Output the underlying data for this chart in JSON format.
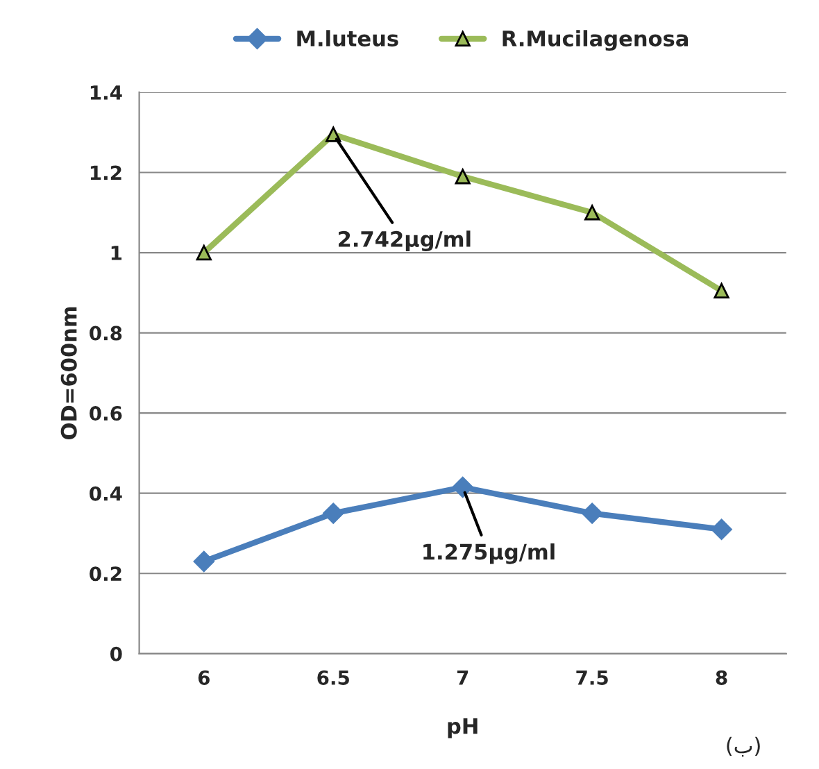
{
  "chart_data": {
    "type": "line",
    "xlabel": "pH",
    "ylabel": "OD=600nm",
    "categories": [
      "6",
      "6.5",
      "7",
      "7.5",
      "8"
    ],
    "series": [
      {
        "name": "M.luteus",
        "color": "#4a7ebb",
        "marker": "diamond",
        "values": [
          0.23,
          0.35,
          0.415,
          0.35,
          0.31
        ]
      },
      {
        "name": "R.Mucilagenosa",
        "color": "#9bbb59",
        "marker": "triangle",
        "values": [
          1.0,
          1.295,
          1.19,
          1.1,
          0.905
        ]
      }
    ],
    "ylim": [
      0,
      1.4
    ],
    "yticks": [
      0,
      0.2,
      0.4,
      0.6,
      0.8,
      1,
      1.2,
      1.4
    ],
    "grid": "y",
    "legend": "top",
    "annotations": [
      {
        "text": "2.742µg/ml",
        "x": "6.5",
        "y": 1.295
      },
      {
        "text": "1.275µg/ml",
        "x": "7",
        "y": 0.415
      },
      "(ب)"
    ]
  }
}
